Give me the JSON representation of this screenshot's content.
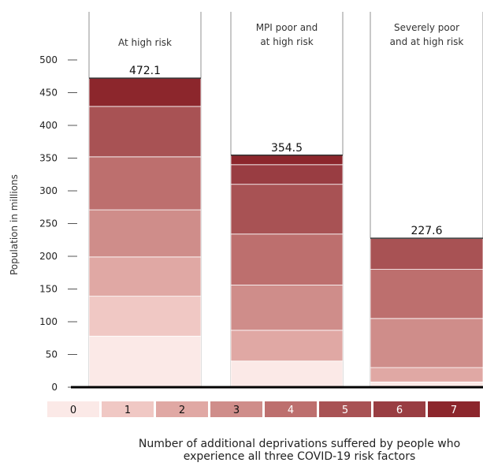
{
  "chart_data": {
    "type": "bar",
    "stacked": true,
    "categories": [
      "At high risk",
      "MPI poor and at high risk",
      "Severely poor and at high risk"
    ],
    "category_lines": [
      [
        "At high risk"
      ],
      [
        "MPI poor and",
        "at high risk"
      ],
      [
        "Severely poor",
        "and at high risk"
      ]
    ],
    "totals": [
      472.1,
      354.5,
      227.6
    ],
    "total_labels": [
      "472.1",
      "354.5",
      "227.6"
    ],
    "ylabel": "Population in millions",
    "ylim": [
      0,
      500
    ],
    "yticks": [
      0,
      50,
      100,
      150,
      200,
      250,
      300,
      350,
      400,
      450,
      500
    ],
    "grid": false,
    "legend_title": "Number of additional deprivations suffered by people who experience all three COVID-19 risk factors",
    "caption_lines": [
      "Number of additional deprivations suffered by people who",
      "experience all three COVID-19 risk factors"
    ],
    "series": [
      {
        "name": "0",
        "color": "#fbe9e7",
        "values": [
          78,
          40,
          8
        ]
      },
      {
        "name": "1",
        "color": "#f0c8c4",
        "values": [
          61,
          0,
          0
        ]
      },
      {
        "name": "2",
        "color": "#e0a8a4",
        "values": [
          60,
          47,
          22
        ]
      },
      {
        "name": "3",
        "color": "#cf8d8a",
        "values": [
          72,
          69,
          75
        ]
      },
      {
        "name": "4",
        "color": "#bd6f6e",
        "values": [
          81,
          78,
          75
        ]
      },
      {
        "name": "5",
        "color": "#a85254",
        "values": [
          77,
          76,
          47
        ]
      },
      {
        "name": "6",
        "color": "#993d42",
        "values": [
          0,
          30,
          0.6
        ]
      },
      {
        "name": "7",
        "color": "#8c262c",
        "values": [
          43.1,
          14.5,
          0
        ]
      }
    ]
  }
}
